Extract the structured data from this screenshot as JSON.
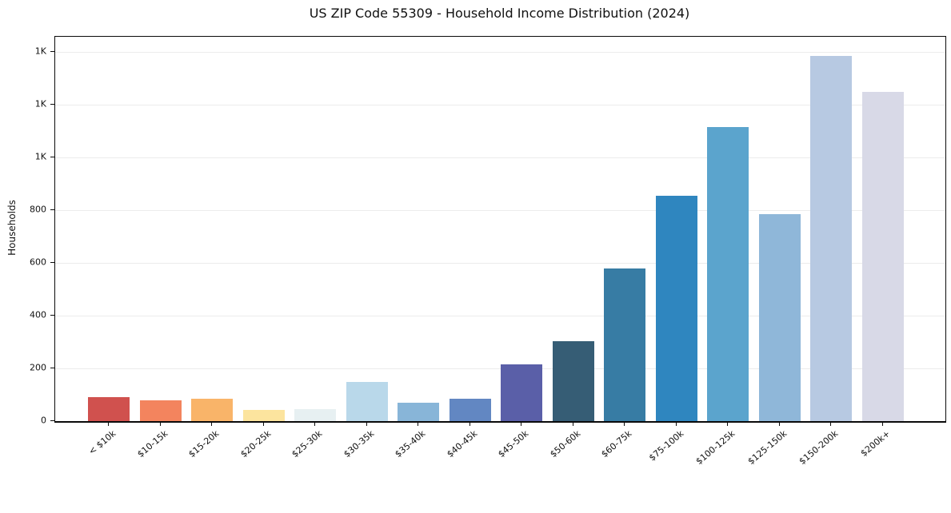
{
  "title": "US ZIP Code 55309 - Household Income Distribution (2024)",
  "chart_data": {
    "type": "bar",
    "title": "US ZIP Code 55309 - Household Income Distribution (2024)",
    "xlabel": "",
    "ylabel": "Households",
    "categories": [
      "< $10k",
      "$10-15k",
      "$15-20k",
      "$20-25k",
      "$25-30k",
      "$30-35k",
      "$35-40k",
      "$40-45k",
      "$45-50k",
      "$50-60k",
      "$60-75k",
      "$75-100k",
      "$100-125k",
      "$125-150k",
      "$150-200k",
      "$200k+"
    ],
    "values": [
      90,
      80,
      84,
      43,
      46,
      150,
      71,
      84,
      215,
      303,
      580,
      855,
      1115,
      785,
      1385,
      1248
    ],
    "bar_colors": [
      "#d0514e",
      "#f3845e",
      "#f9b469",
      "#fce49e",
      "#e7f0f2",
      "#b9d8ea",
      "#88b5d8",
      "#6287c2",
      "#5a5fa8",
      "#365d75",
      "#377ca4",
      "#2f86bf",
      "#5ba4cd",
      "#8fb7d9",
      "#b7c9e2",
      "#d8d9e7"
    ],
    "ylim": [
      0,
      1458
    ],
    "yticks": [
      {
        "value": 0,
        "label": "0"
      },
      {
        "value": 200,
        "label": "200"
      },
      {
        "value": 400,
        "label": "400"
      },
      {
        "value": 600,
        "label": "600"
      },
      {
        "value": 800,
        "label": "800"
      },
      {
        "value": 1000,
        "label": "1K"
      },
      {
        "value": 1200,
        "label": "1K"
      },
      {
        "value": 1400,
        "label": "1K"
      }
    ],
    "grid": "horizontal",
    "gridline_color": "#ececec",
    "legend": "none",
    "background": "#ffffff"
  }
}
